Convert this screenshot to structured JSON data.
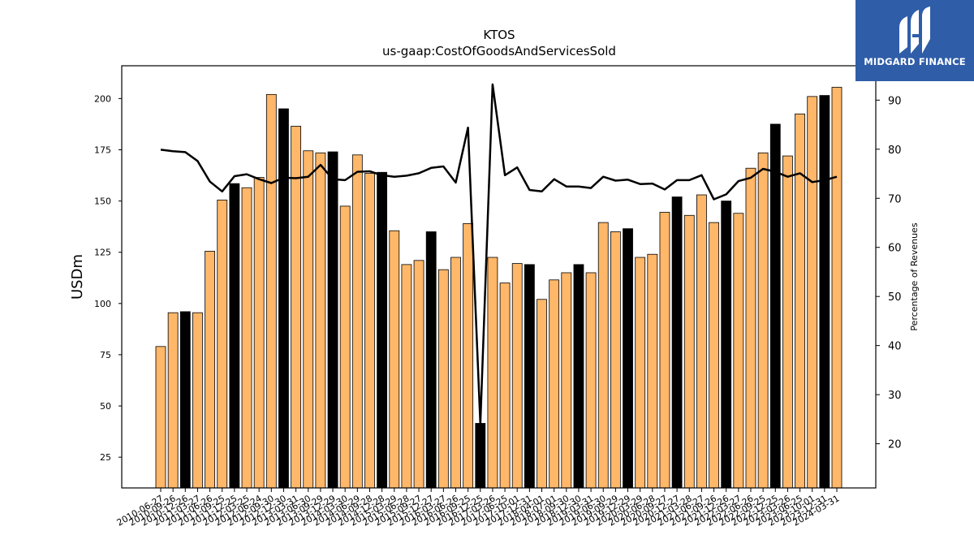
{
  "chart_data": {
    "type": "bar",
    "title": "KTOS",
    "subtitle": "us-gaap:CostOfGoodsAndServicesSold",
    "ylabel": "USDm",
    "y2label": "Percentage of Revenues",
    "ylim": [
      10,
      216
    ],
    "y2lim": [
      11,
      97
    ],
    "yticks": [
      25,
      50,
      75,
      100,
      125,
      150,
      175,
      200
    ],
    "y2ticks": [
      20,
      30,
      40,
      50,
      60,
      70,
      80,
      90
    ],
    "xtick_labels": [
      "2010-06-27",
      "2010-09-26",
      "2010-12-26",
      "2011-03-27",
      "2011-06-26",
      "2011-09-25",
      "2011-12-25",
      "2012-03-25",
      "2012-06-24",
      "2012-09-30",
      "2012-12-30",
      "2013-03-31",
      "2013-06-30",
      "2013-09-29",
      "2013-12-29",
      "2014-03-30",
      "2014-06-29",
      "2014-09-28",
      "2014-12-28",
      "2015-03-29",
      "2015-06-28",
      "2015-09-27",
      "2015-12-27",
      "2016-03-27",
      "2016-06-26",
      "2016-09-25",
      "2016-12-25",
      "2017-03-26",
      "2017-06-25",
      "2017-10-01",
      "2017-12-31",
      "2018-04-01",
      "2018-07-01",
      "2018-09-30",
      "2018-12-30",
      "2019-03-31",
      "2019-06-30",
      "2019-09-29",
      "2019-12-29",
      "2020-03-29",
      "2020-06-28",
      "2020-09-27",
      "2020-12-27",
      "2021-03-28",
      "2021-06-27",
      "2021-09-26",
      "2021-12-26",
      "2022-03-27",
      "2022-06-26",
      "2022-09-25",
      "2022-12-25",
      "2023-03-26",
      "2023-06-25",
      "2023-10-01",
      "2023-12-31",
      "2024-03-31"
    ],
    "values": [
      79,
      95.5,
      96,
      95.5,
      125.5,
      150.5,
      158.5,
      156.5,
      161.5,
      202,
      195,
      186.5,
      174.5,
      173.5,
      174,
      147.5,
      172.5,
      163.5,
      164,
      135.5,
      119,
      121,
      135,
      116.5,
      122.5,
      139,
      41.5,
      122.5,
      110,
      119.5,
      119,
      102,
      111.5,
      115,
      119,
      115,
      139.5,
      135,
      136.5,
      122.5,
      124,
      144.5,
      152,
      143,
      153,
      139.5,
      150,
      144,
      166,
      173.5,
      187.5,
      172,
      192.5,
      201,
      201.5,
      205.5
    ],
    "highlight": [
      false,
      false,
      true,
      false,
      false,
      false,
      true,
      false,
      false,
      false,
      true,
      false,
      false,
      false,
      true,
      false,
      false,
      false,
      true,
      false,
      false,
      false,
      true,
      false,
      false,
      false,
      true,
      false,
      false,
      false,
      true,
      false,
      false,
      false,
      true,
      false,
      false,
      false,
      true,
      false,
      false,
      false,
      true,
      false,
      false,
      false,
      true,
      false,
      false,
      false,
      true,
      false,
      false,
      false,
      true,
      false
    ],
    "percent_of_revenues": [
      79.9,
      79.6,
      79.4,
      77.6,
      73.4,
      71.4,
      74.5,
      74.9,
      73.9,
      73.1,
      74.2,
      74.1,
      74.4,
      76.8,
      73.9,
      73.7,
      75.4,
      75.5,
      74.7,
      74.4,
      74.6,
      75.1,
      76.2,
      76.5,
      73.2,
      84.4,
      24.0,
      93.2,
      74.7,
      76.3,
      71.7,
      71.4,
      73.9,
      72.4,
      72.4,
      72.1,
      74.4,
      73.6,
      73.8,
      72.9,
      73.0,
      71.8,
      73.7,
      73.7,
      74.7,
      69.8,
      70.8,
      73.5,
      74.2,
      76.0,
      75.4,
      74.4,
      75.1,
      73.3,
      73.7,
      74.4
    ],
    "colors": {
      "bar": "#ffb769",
      "bar_highlight": "#000000",
      "line": "#000000",
      "edge": "#000000"
    },
    "grid": false,
    "legend": "none"
  },
  "logo": {
    "text": "MIDGARD FINANCE",
    "background": "#2f5da8"
  }
}
